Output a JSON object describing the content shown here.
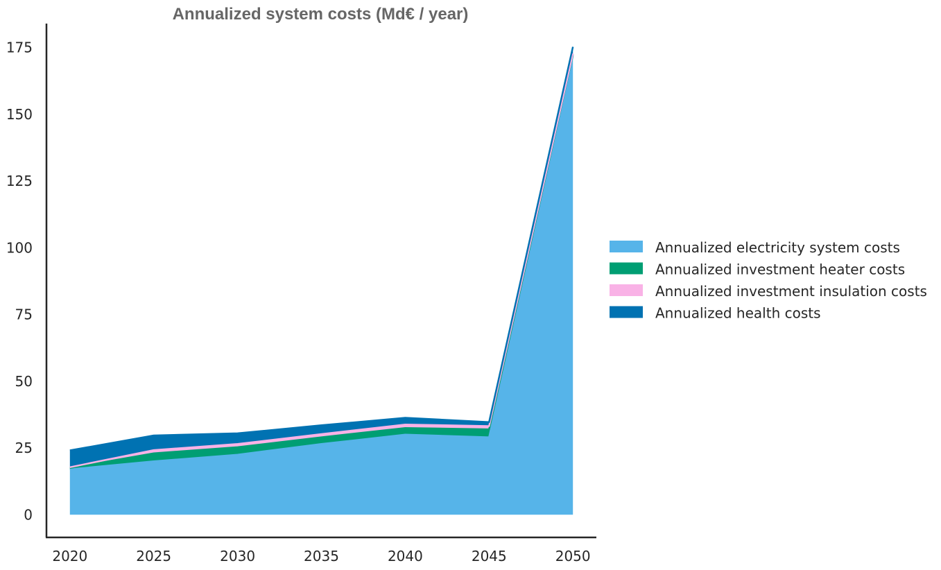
{
  "chart_data": {
    "type": "area",
    "stacked": true,
    "title": "Annualized system costs (Md€ / year)",
    "xlabel": "",
    "ylabel": "",
    "x": [
      2020,
      2025,
      2030,
      2035,
      2040,
      2045,
      2050
    ],
    "x_ticks": [
      "2020",
      "2025",
      "2030",
      "2035",
      "2040",
      "2045",
      "2050"
    ],
    "y_ticks": [
      "0",
      "25",
      "50",
      "75",
      "100",
      "125",
      "150",
      "175"
    ],
    "y_tick_values": [
      0,
      25,
      50,
      75,
      100,
      125,
      150,
      175
    ],
    "xlim": [
      2018.6,
      2051.4
    ],
    "ylim": [
      -8.5,
      184
    ],
    "grid": false,
    "legend_position": "center-right",
    "series": [
      {
        "name": "Annualized electricity system costs",
        "color": "#56B4E9",
        "values": [
          17.0,
          20.0,
          22.5,
          26.5,
          30.0,
          29.0,
          172.0
        ]
      },
      {
        "name": "Annualized investment heater costs",
        "color": "#009E73",
        "values": [
          0.5,
          3.0,
          2.8,
          2.5,
          2.5,
          3.0,
          0.5
        ]
      },
      {
        "name": "Annualized investment insulation costs",
        "color": "#F9B2E6",
        "values": [
          0.3,
          1.2,
          1.2,
          1.2,
          1.3,
          1.2,
          0.3
        ]
      },
      {
        "name": "Annualized health costs",
        "color": "#0072B2",
        "values": [
          6.3,
          5.5,
          4.0,
          3.3,
          2.5,
          1.5,
          2.5
        ]
      }
    ]
  }
}
